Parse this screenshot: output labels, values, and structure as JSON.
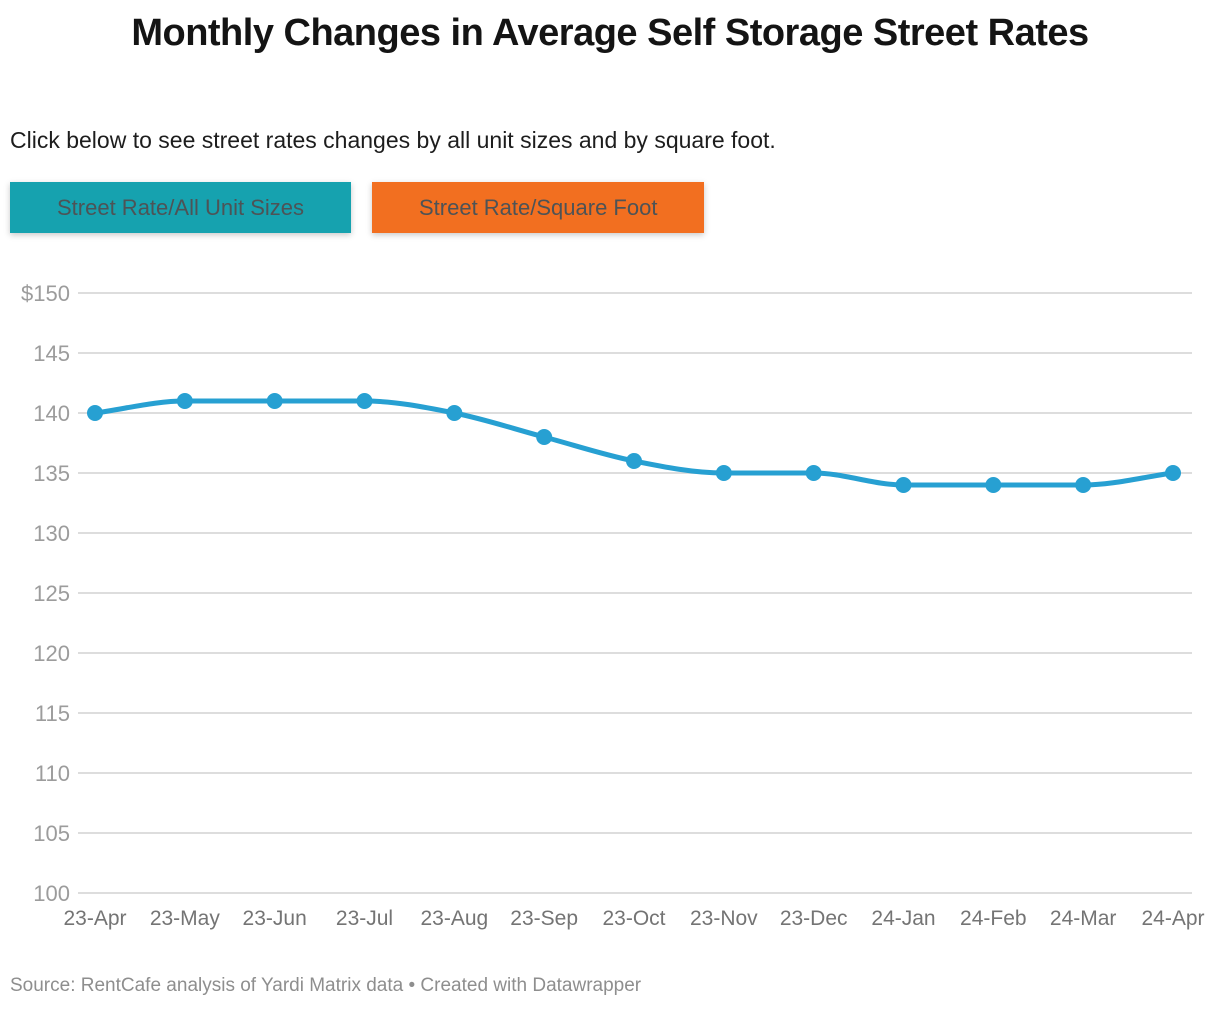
{
  "header": {
    "title": "Monthly Changes in Average Self Storage Street Rates",
    "intro": "Click below to see street rates changes by all unit sizes and by square foot."
  },
  "buttons": [
    {
      "label": "Street Rate/All Unit Sizes",
      "color": "#16a2af"
    },
    {
      "label": "Street Rate/Square Foot",
      "color": "#f26f20"
    }
  ],
  "chart_data": {
    "type": "line",
    "title": "Monthly Changes in Average Self Storage Street Rates",
    "categories": [
      "23-Apr",
      "23-May",
      "23-Jun",
      "23-Jul",
      "23-Aug",
      "23-Sep",
      "23-Oct",
      "23-Nov",
      "23-Dec",
      "24-Jan",
      "24-Feb",
      "24-Mar",
      "24-Apr"
    ],
    "values": [
      140,
      141,
      141,
      141,
      140,
      138,
      136,
      135,
      135,
      134,
      134,
      134,
      135
    ],
    "xlabel": "",
    "ylabel": "",
    "ylim": [
      100,
      150
    ],
    "y_tick_step": 5,
    "y_tick_labels": [
      "$150",
      "145",
      "140",
      "135",
      "130",
      "125",
      "120",
      "115",
      "110",
      "105",
      "100"
    ],
    "grid": true,
    "legend": "none",
    "line_color": "#27a0d2",
    "grid_color": "#dddddd"
  },
  "footer": {
    "text": "Source: RentCafe analysis of Yardi Matrix data • Created with Datawrapper"
  }
}
